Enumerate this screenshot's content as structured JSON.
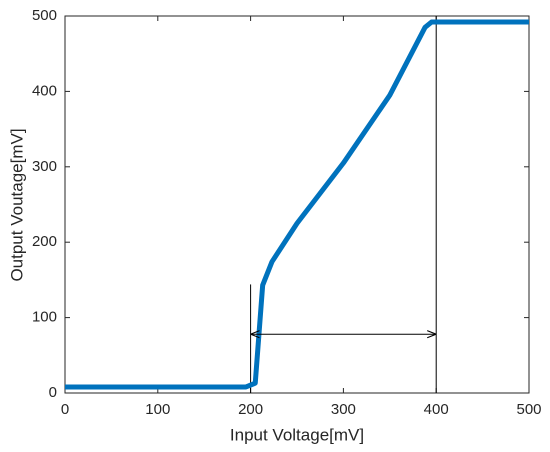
{
  "chart_data": {
    "type": "line",
    "x_label": "Input Voltage[mV]",
    "y_label": "Output Voutage[mV]",
    "x": [
      0,
      195,
      205,
      213,
      223,
      250,
      300,
      350,
      388,
      395,
      500
    ],
    "series": [
      {
        "color": "#0072bd",
        "values": [
          8,
          8,
          13,
          143,
          174,
          225,
          305,
          395,
          485,
          492,
          492
        ]
      }
    ],
    "xlim": [
      0,
      500
    ],
    "xticks": [
      0,
      100,
      200,
      300,
      400,
      500
    ],
    "ylim": [
      0,
      500
    ],
    "yticks": [
      0,
      100,
      200,
      300,
      400,
      500
    ],
    "grid": false,
    "markers": [
      {
        "x": 200,
        "y": 144
      },
      {
        "x": 400,
        "y": 500
      }
    ],
    "arrow": {
      "x": [
        200,
        400
      ],
      "y": 78
    }
  }
}
